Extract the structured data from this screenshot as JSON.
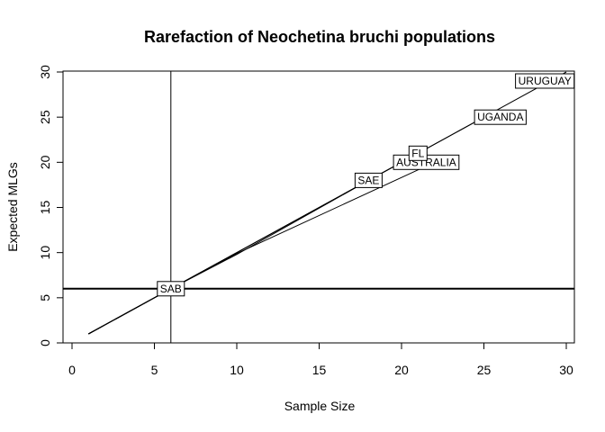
{
  "chart_data": {
    "type": "line",
    "title": "Rarefaction of Neochetina bruchi populations",
    "xlabel": "Sample Size",
    "ylabel": "Expected MLGs",
    "xlim": [
      0,
      30
    ],
    "ylim": [
      0,
      30
    ],
    "xticks": [
      0,
      5,
      10,
      15,
      20,
      25,
      30
    ],
    "yticks": [
      0,
      5,
      10,
      15,
      20,
      25,
      30
    ],
    "grid": false,
    "reference_lines": {
      "vertical_x": 6,
      "horizontal_y": 6
    },
    "series": [
      {
        "name": "SAB",
        "points": [
          [
            1,
            1
          ],
          [
            2,
            2
          ],
          [
            3,
            3
          ],
          [
            4,
            4
          ],
          [
            5,
            5
          ],
          [
            6,
            6
          ]
        ]
      },
      {
        "name": "SAE",
        "points": [
          [
            1,
            1
          ],
          [
            6,
            6
          ],
          [
            10,
            9.8
          ],
          [
            18,
            18
          ]
        ]
      },
      {
        "name": "AUSTRALIA",
        "points": [
          [
            1,
            1
          ],
          [
            6,
            6
          ],
          [
            10,
            9.9
          ],
          [
            22,
            20
          ]
        ]
      },
      {
        "name": "FL",
        "points": [
          [
            1,
            1
          ],
          [
            6,
            6
          ],
          [
            10,
            10
          ],
          [
            21,
            21
          ]
        ]
      },
      {
        "name": "UGANDA",
        "points": [
          [
            1,
            1
          ],
          [
            6,
            6
          ],
          [
            10,
            10
          ],
          [
            25,
            25
          ]
        ]
      },
      {
        "name": "URUGUAY",
        "points": [
          [
            1,
            1
          ],
          [
            6,
            6
          ],
          [
            10,
            10
          ],
          [
            30,
            30
          ]
        ]
      }
    ],
    "labels": [
      {
        "text": "SAB",
        "x": 6,
        "y": 6
      },
      {
        "text": "SAE",
        "x": 18,
        "y": 18
      },
      {
        "text": "AUSTRALIA",
        "x": 21.5,
        "y": 20
      },
      {
        "text": "FL",
        "x": 21,
        "y": 21
      },
      {
        "text": "UGANDA",
        "x": 26,
        "y": 25
      },
      {
        "text": "URUGUAY",
        "x": 28.7,
        "y": 29
      }
    ]
  }
}
